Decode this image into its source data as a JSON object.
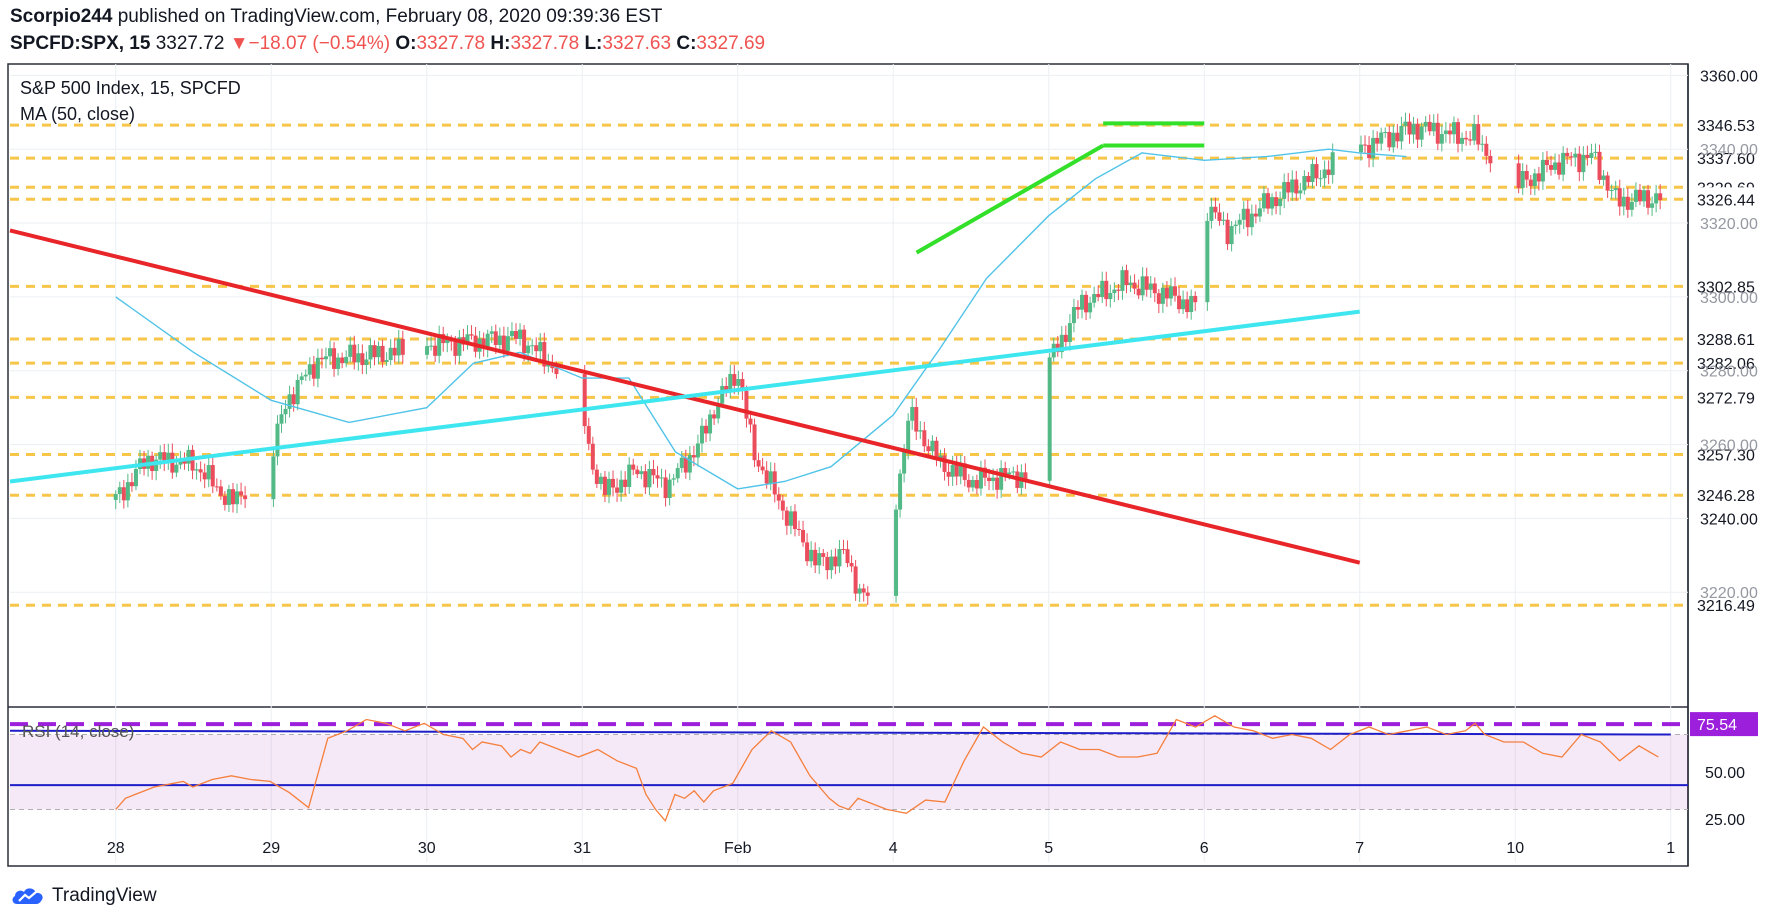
{
  "header": {
    "author": "Scorpio244",
    "published_text": "published on TradingView.com, February 08, 2020 09:39:36 EST",
    "symbol": "SPCFD:SPX, 15",
    "last": "3327.72",
    "change_arrow": "▼",
    "change": "−18.07 (−0.54%)",
    "o_label": "O:",
    "o_value": "3327.78",
    "h_label": "H:",
    "h_value": "3327.78",
    "l_label": "L:",
    "l_value": "3327.63",
    "c_label": "C:",
    "c_value": "3327.69"
  },
  "pane": {
    "title": "S&P 500 Index, 15, SPCFD",
    "ma_label": "MA (50, close)",
    "rsi_label": "RSI (14, close)"
  },
  "footer": {
    "brand": "TradingView"
  },
  "colors": {
    "candle_up": "#53b987",
    "candle_down": "#eb4d5c",
    "ma": "#4fc3e8",
    "support": "#f7c548",
    "downtrend": "#e8262a",
    "uptrend": "#3ee6f0",
    "triangle": "#32e02a",
    "rsi": "#f57f3c",
    "rsi_band": "#9c27b0",
    "rsi_hline": "#1e1ec8",
    "rsi_dash": "#9c1fdc"
  },
  "chart_data": [
    {
      "type": "candlestick",
      "title": "S&P 500 Index, 15, SPCFD",
      "ylim": [
        3190,
        3362
      ],
      "y_ticks": [
        "3360.00",
        "3340.00",
        "3320.00",
        "3300.00",
        "3280.00",
        "3260.00",
        "3240.00",
        "3220.00"
      ],
      "x_ticks": [
        "28",
        "29",
        "30",
        "31",
        "Feb",
        "4",
        "5",
        "6",
        "7",
        "10",
        "1"
      ],
      "hidden_ticks": [
        "3340.00",
        "3320.00",
        "3300.00",
        "3280.00",
        "3260.00",
        "3220.00"
      ],
      "price_levels": [
        "3346.53",
        "3337.60",
        "3329.69",
        "3326.44",
        "3302.85",
        "3288.61",
        "3282.06",
        "3272.79",
        "3257.30",
        "3246.28",
        "3216.49"
      ],
      "series": [
        {
          "name": "MA (50, close)",
          "x": [
            0,
            0.5,
            1,
            1.5,
            2,
            2.3,
            2.6,
            3,
            3.3,
            3.6,
            4,
            4.3,
            4.6,
            5,
            5.3,
            5.6,
            6,
            6.3,
            6.6,
            7,
            7.4,
            7.8,
            8,
            8.3
          ],
          "values": [
            3300,
            3285,
            3272,
            3266,
            3270,
            3282,
            3285,
            3278,
            3278,
            3258,
            3248,
            3250,
            3254,
            3268,
            3286,
            3305,
            3322,
            3332,
            3339,
            3337,
            3338,
            3340,
            3339,
            3338
          ]
        },
        {
          "name": "RSI (14, close)",
          "x": [
            0,
            0.05,
            0.1,
            0.2,
            0.3,
            0.35,
            0.4,
            0.5,
            0.6,
            0.7,
            0.8,
            0.9,
            1.0,
            1.1,
            1.2,
            1.3,
            1.4,
            1.5,
            1.6,
            1.7,
            1.8,
            1.85,
            1.9,
            2.0,
            2.05,
            2.1,
            2.15,
            2.2,
            2.3,
            2.4,
            2.5,
            2.6,
            2.7,
            2.75,
            2.8,
            2.85,
            2.9,
            2.95,
            3.0,
            3.05,
            3.1,
            3.2,
            3.3,
            3.4,
            3.5,
            3.6,
            3.7,
            3.75,
            3.8,
            3.85,
            3.9,
            4.0,
            4.1,
            4.2,
            4.3,
            4.4,
            4.5,
            4.6,
            4.7,
            4.8,
            4.9,
            5.0,
            5.1,
            5.2,
            5.3,
            5.4,
            5.5,
            5.6,
            5.7,
            5.8,
            5.9,
            6.0,
            6.1,
            6.2,
            6.3,
            6.4,
            6.5,
            6.6,
            6.7,
            6.8,
            6.9,
            7.0,
            7.05,
            7.1,
            7.2,
            7.3,
            7.4,
            7.5,
            7.6,
            7.7,
            7.8,
            7.9,
            8.0
          ],
          "values": [
            30,
            36,
            38,
            42,
            44,
            45,
            42,
            46,
            48,
            46,
            45,
            39,
            31,
            68,
            72,
            78,
            76,
            72,
            76,
            70,
            68,
            62,
            66,
            64,
            58,
            62,
            60,
            66,
            62,
            58,
            62,
            56,
            52,
            38,
            30,
            24,
            38,
            36,
            40,
            34,
            40,
            44,
            62,
            72,
            66,
            48,
            36,
            32,
            30,
            36,
            34,
            30,
            28,
            35,
            34,
            56,
            74,
            66,
            60,
            58,
            66,
            62,
            62,
            58,
            58,
            60,
            78,
            74,
            80,
            74,
            72,
            68,
            70,
            68,
            62,
            70,
            74,
            70,
            72,
            74,
            70,
            72,
            76,
            70,
            66,
            66,
            60,
            58,
            70,
            66,
            56,
            64,
            58
          ]
        }
      ]
    },
    {
      "type": "line",
      "title": "RSI (14, close)",
      "ylim": [
        18,
        82
      ],
      "y_ticks": [
        "75.54",
        "50.00",
        "25.00"
      ],
      "bands": [
        30,
        70
      ],
      "hlines": [
        72,
        43
      ]
    }
  ]
}
